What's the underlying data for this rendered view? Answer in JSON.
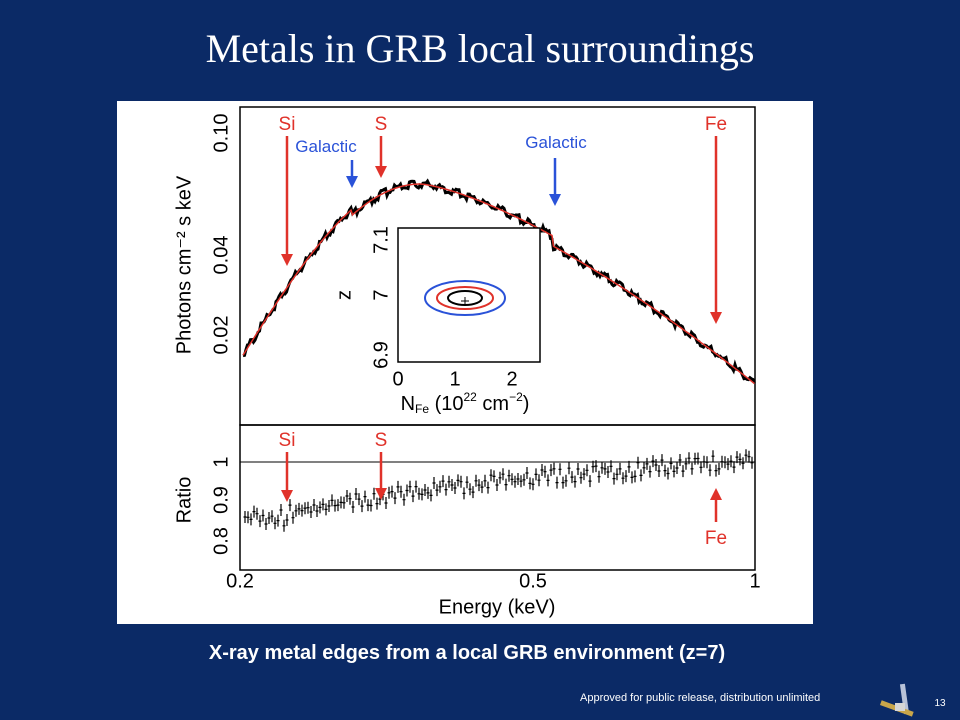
{
  "title": "Metals in GRB local surroundings",
  "figure": {
    "top_panel": {
      "ylabel": "Photons cm⁻² s keV",
      "yticks": [
        "0.02",
        "0.04",
        "0.10"
      ],
      "annotations": [
        "Si",
        "Galactic",
        "S",
        "Galactic",
        "Fe"
      ]
    },
    "inset": {
      "ylabel": "z",
      "yticks": [
        "6.9",
        "7",
        "7.1"
      ],
      "xticks": [
        "0",
        "1",
        "2"
      ],
      "xlabel_parts": [
        "N",
        "Fe",
        " (10",
        "22",
        " cm",
        "−2",
        ")"
      ]
    },
    "bottom_panel": {
      "ylabel": "Ratio",
      "yticks": [
        "0.8",
        "0.9",
        "1"
      ],
      "annotations": [
        "Si",
        "S",
        "Fe"
      ]
    },
    "xticks": [
      "0.2",
      "0.5",
      "1"
    ],
    "xlabel": "Energy (keV)"
  },
  "caption": "X-ray metal edges from a  local GRB environment (z=7)",
  "footer": "Approved for public release, distribution unlimited",
  "page_number": "13"
}
